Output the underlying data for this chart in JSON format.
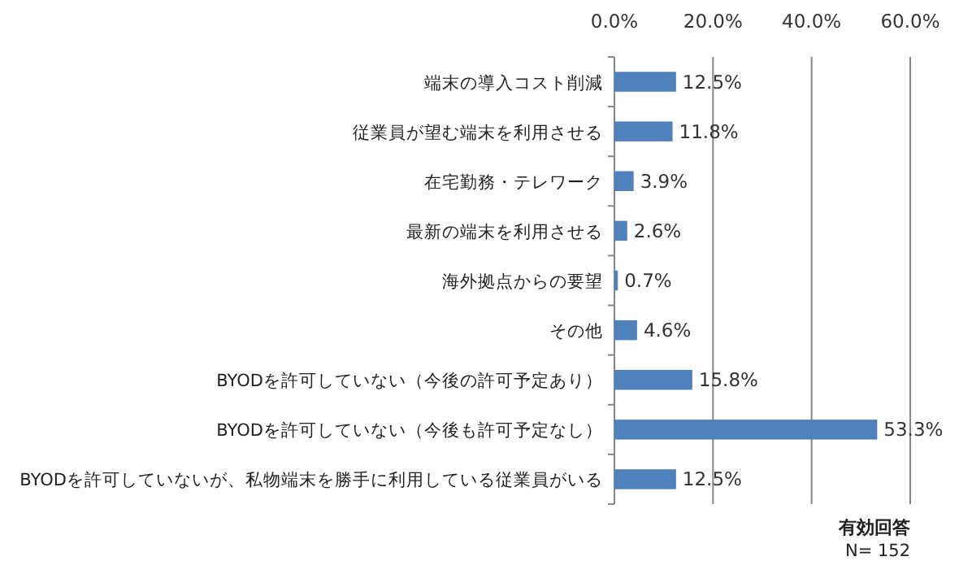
{
  "chart_data": {
    "type": "bar",
    "orientation": "horizontal",
    "categories": [
      "端末の導入コスト削減",
      "従業員が望む端末を利用させる",
      "在宅勤務・テレワーク",
      "最新の端末を利用させる",
      "海外拠点からの要望",
      "その他",
      "BYODを許可していない（今後の許可予定あり）",
      "BYODを許可していない（今後も許可予定なし）",
      "BYODを許可していないが、私物端末を勝手に利用している従業員がいる"
    ],
    "values": [
      12.5,
      11.8,
      3.9,
      2.6,
      0.7,
      4.6,
      15.8,
      53.3,
      12.5
    ],
    "value_labels": [
      "12.5%",
      "11.8%",
      "3.9%",
      "2.6%",
      "0.7%",
      "4.6%",
      "15.8%",
      "53.3%",
      "12.5%"
    ],
    "color": "#4f81bd",
    "xlim": [
      0,
      60
    ],
    "xticks": [
      {
        "value": 0,
        "label": "0.0%"
      },
      {
        "value": 20,
        "label": "20.0%"
      },
      {
        "value": 40,
        "label": "40.0%"
      },
      {
        "value": 60,
        "label": "60.0%"
      }
    ],
    "grid": "x",
    "annotations": [
      "有効回答",
      "N= 152"
    ]
  }
}
